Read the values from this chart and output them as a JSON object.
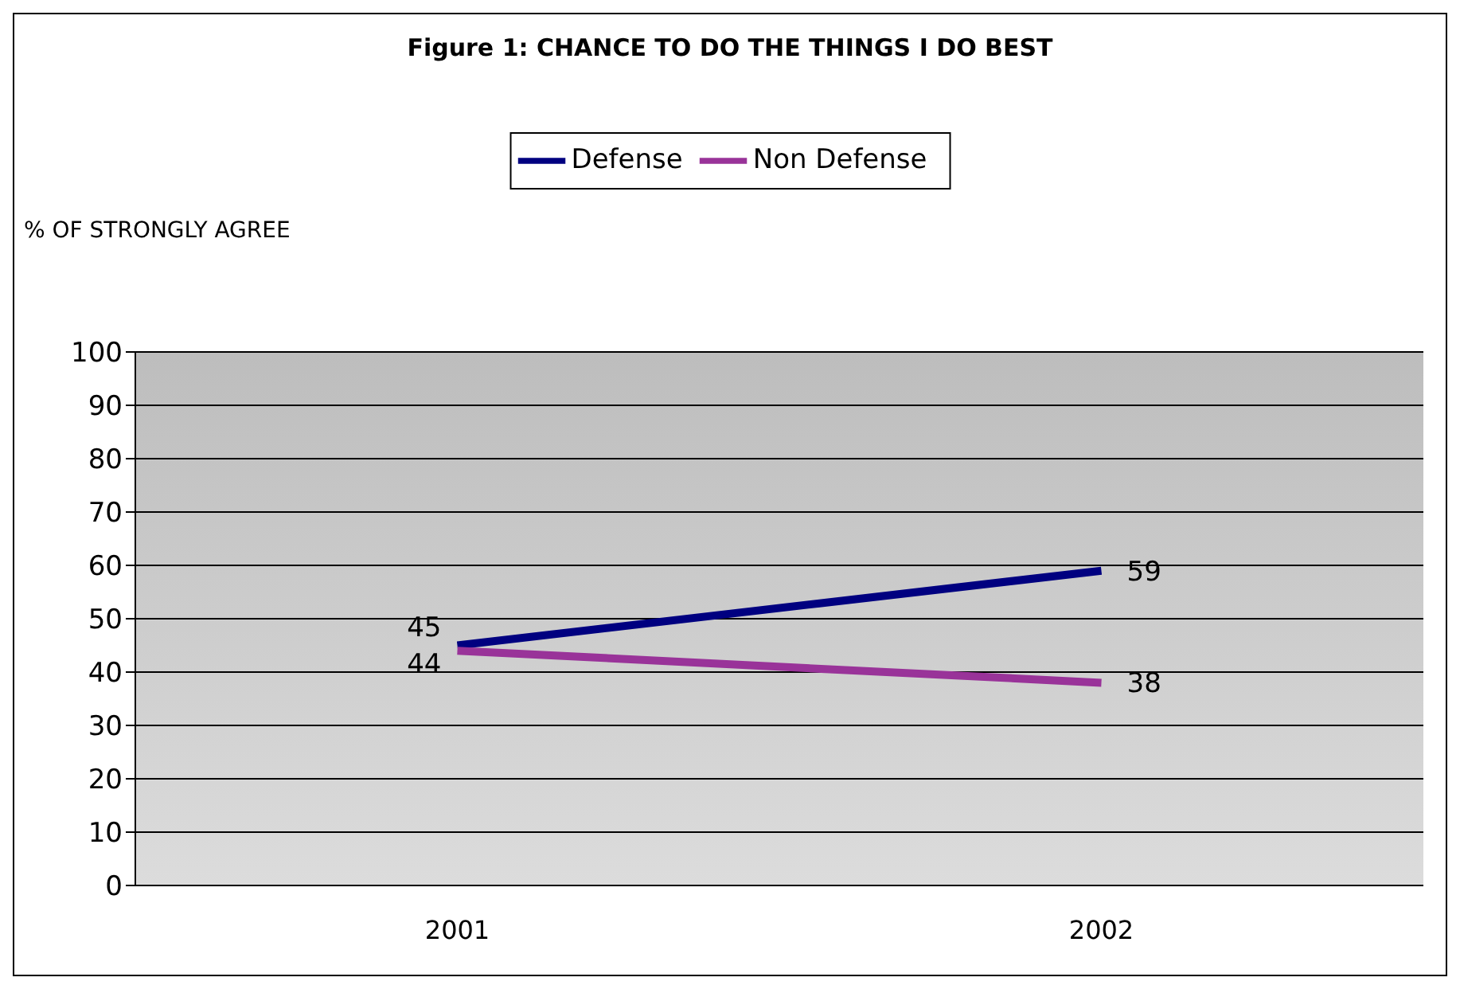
{
  "chart_data": {
    "type": "line",
    "title": "Figure 1: CHANCE TO DO THE THINGS I DO BEST",
    "ylabel": "% OF STRONGLY AGREE",
    "categories": [
      "2001",
      "2002"
    ],
    "series": [
      {
        "name": "Defense",
        "color": "#000080",
        "values": [
          45,
          59
        ]
      },
      {
        "name": "Non Defense",
        "color": "#993399",
        "values": [
          44,
          38
        ]
      }
    ],
    "ylim": [
      0,
      100
    ],
    "yticks": [
      0,
      10,
      20,
      30,
      40,
      50,
      60,
      70,
      80,
      90,
      100
    ],
    "grid": "y",
    "legend": "top",
    "marker": "none",
    "line_style": "solid",
    "data_labels": true
  }
}
